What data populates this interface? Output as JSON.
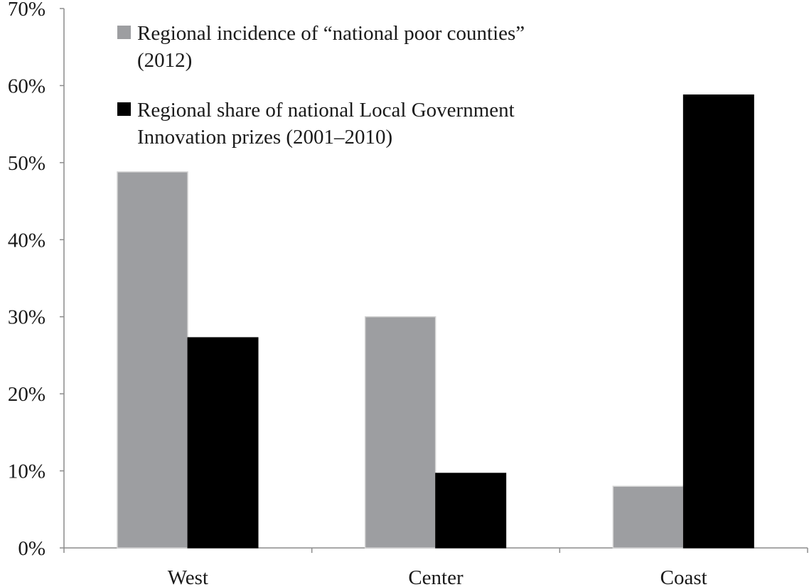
{
  "chart_data": {
    "type": "bar",
    "categories": [
      "West",
      "Center",
      "Coast"
    ],
    "series": [
      {
        "name": "Regional incidence of “national poor counties” (2012)",
        "name_lines": [
          "Regional incidence of “national poor counties”",
          "(2012)"
        ],
        "values": [
          48.8,
          30.0,
          8.0
        ],
        "color": "#9d9ea1"
      },
      {
        "name": "Regional share of national Local Government Innovation prizes (2001–2010)",
        "name_lines": [
          "Regional share of national Local Government",
          "Innovation prizes (2001–2010)"
        ],
        "values": [
          27.3,
          9.7,
          58.8
        ],
        "color": "#000000"
      }
    ],
    "ylim": [
      0,
      70
    ],
    "yticks": [
      0,
      10,
      20,
      30,
      40,
      50,
      60,
      70
    ],
    "ytick_labels": [
      "0%",
      "10%",
      "20%",
      "30%",
      "40%",
      "50%",
      "60%",
      "70%"
    ],
    "legend_position": "top-left inside",
    "grid": false,
    "title": "",
    "xlabel": "",
    "ylabel": ""
  }
}
